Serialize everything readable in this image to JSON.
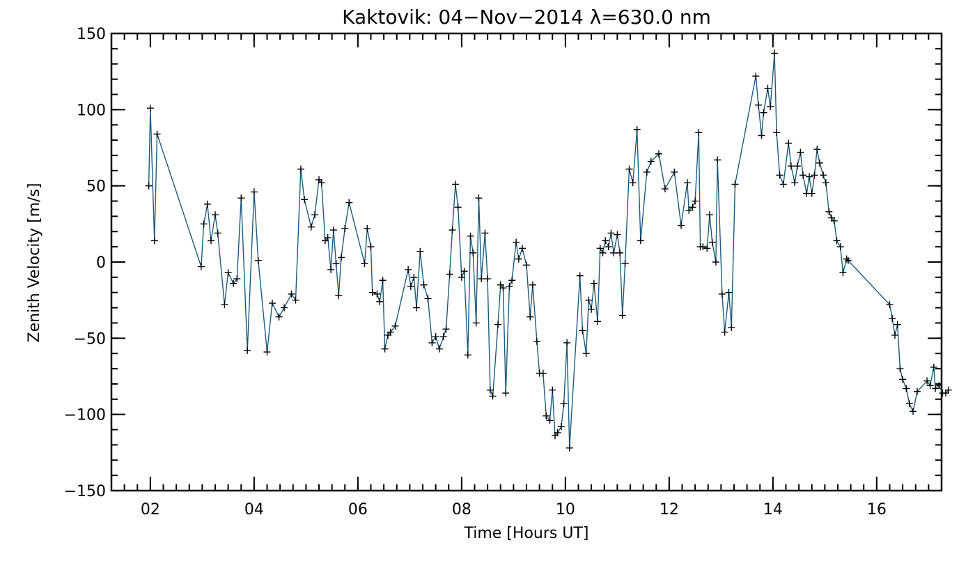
{
  "chart_data": {
    "type": "line",
    "title": "Kaktovik: 04−Nov−2014 λ=630.0 nm",
    "xlabel": "Time [Hours UT]",
    "ylabel": "Zenith Velocity [m/s]",
    "xlim": [
      1.25,
      17.25
    ],
    "ylim": [
      -150,
      150
    ],
    "x_ticks": [
      2,
      4,
      6,
      8,
      10,
      12,
      14,
      16
    ],
    "x_tick_labels": [
      "02",
      "04",
      "06",
      "08",
      "10",
      "12",
      "14",
      "16"
    ],
    "y_ticks": [
      -150,
      -100,
      -50,
      0,
      50,
      100,
      150
    ],
    "y_tick_labels": [
      "−150",
      "−100",
      "−50",
      "0",
      "50",
      "100",
      "150"
    ],
    "x_minor_step": 0.25,
    "y_minor_step": 10,
    "grid": false,
    "legend": "none",
    "line_color": "#1c5a7a",
    "marker": "+",
    "series": [
      {
        "points": [
          [
            1.97,
            50
          ],
          [
            2.0,
            101
          ],
          [
            2.08,
            14
          ],
          [
            2.13,
            84
          ],
          [
            2.98,
            -3
          ],
          [
            3.03,
            25
          ],
          [
            3.1,
            38
          ],
          [
            3.17,
            14
          ],
          [
            3.25,
            31
          ],
          [
            3.3,
            19
          ],
          [
            3.43,
            -28
          ],
          [
            3.5,
            -7
          ],
          [
            3.6,
            -14
          ],
          [
            3.67,
            -11
          ],
          [
            3.75,
            42
          ],
          [
            3.87,
            -58
          ],
          [
            4.0,
            46
          ],
          [
            4.08,
            1
          ],
          [
            4.25,
            -59
          ],
          [
            4.35,
            -27
          ],
          [
            4.48,
            -36
          ],
          [
            4.58,
            -30
          ],
          [
            4.72,
            -21
          ],
          [
            4.8,
            -25
          ],
          [
            4.9,
            61
          ],
          [
            4.97,
            41
          ],
          [
            5.1,
            23
          ],
          [
            5.17,
            31
          ],
          [
            5.25,
            54
          ],
          [
            5.3,
            52
          ],
          [
            5.37,
            14
          ],
          [
            5.42,
            16
          ],
          [
            5.48,
            -5
          ],
          [
            5.53,
            21
          ],
          [
            5.58,
            -1
          ],
          [
            5.63,
            -22
          ],
          [
            5.68,
            3
          ],
          [
            5.75,
            22
          ],
          [
            5.83,
            39
          ],
          [
            6.13,
            -1
          ],
          [
            6.18,
            22
          ],
          [
            6.25,
            10
          ],
          [
            6.28,
            -20
          ],
          [
            6.37,
            -21
          ],
          [
            6.42,
            -26
          ],
          [
            6.48,
            -12
          ],
          [
            6.52,
            -57
          ],
          [
            6.58,
            -48
          ],
          [
            6.63,
            -46
          ],
          [
            6.72,
            -42
          ],
          [
            6.97,
            -5
          ],
          [
            7.02,
            -16
          ],
          [
            7.08,
            -10
          ],
          [
            7.13,
            -30
          ],
          [
            7.2,
            7
          ],
          [
            7.27,
            -15
          ],
          [
            7.35,
            -24
          ],
          [
            7.43,
            -53
          ],
          [
            7.5,
            -49
          ],
          [
            7.57,
            -57
          ],
          [
            7.65,
            -49
          ],
          [
            7.7,
            -44
          ],
          [
            7.77,
            -8
          ],
          [
            7.82,
            21
          ],
          [
            7.88,
            51
          ],
          [
            7.93,
            36
          ],
          [
            8.0,
            -10
          ],
          [
            8.05,
            -6
          ],
          [
            8.12,
            -61
          ],
          [
            8.17,
            17
          ],
          [
            8.22,
            6
          ],
          [
            8.28,
            -40
          ],
          [
            8.33,
            42
          ],
          [
            8.38,
            -11
          ],
          [
            8.45,
            19
          ],
          [
            8.5,
            -11
          ],
          [
            8.55,
            -84
          ],
          [
            8.6,
            -88
          ],
          [
            8.7,
            -41
          ],
          [
            8.75,
            -15
          ],
          [
            8.8,
            -17
          ],
          [
            8.85,
            -86
          ],
          [
            8.92,
            -16
          ],
          [
            8.97,
            -12
          ],
          [
            9.05,
            13
          ],
          [
            9.1,
            2
          ],
          [
            9.17,
            9
          ],
          [
            9.25,
            -2
          ],
          [
            9.32,
            -36
          ],
          [
            9.37,
            -15
          ],
          [
            9.45,
            -52
          ],
          [
            9.5,
            -73
          ],
          [
            9.57,
            -73
          ],
          [
            9.63,
            -101
          ],
          [
            9.7,
            -104
          ],
          [
            9.75,
            -84
          ],
          [
            9.8,
            -114
          ],
          [
            9.85,
            -112
          ],
          [
            9.92,
            -108
          ],
          [
            9.97,
            -93
          ],
          [
            10.03,
            -53
          ],
          [
            10.08,
            -122
          ],
          [
            10.28,
            -9
          ],
          [
            10.33,
            -45
          ],
          [
            10.4,
            -60
          ],
          [
            10.45,
            -25
          ],
          [
            10.5,
            -31
          ],
          [
            10.55,
            -14
          ],
          [
            10.62,
            -39
          ],
          [
            10.67,
            9
          ],
          [
            10.72,
            6
          ],
          [
            10.77,
            14
          ],
          [
            10.83,
            10
          ],
          [
            10.88,
            19
          ],
          [
            10.93,
            6
          ],
          [
            11.0,
            18
          ],
          [
            11.05,
            6
          ],
          [
            11.1,
            -35
          ],
          [
            11.15,
            -1
          ],
          [
            11.23,
            61
          ],
          [
            11.3,
            52
          ],
          [
            11.38,
            87
          ],
          [
            11.45,
            14
          ],
          [
            11.57,
            59
          ],
          [
            11.65,
            66
          ],
          [
            11.8,
            71
          ],
          [
            11.92,
            48
          ],
          [
            12.1,
            59
          ],
          [
            12.23,
            24
          ],
          [
            12.35,
            52
          ],
          [
            12.38,
            34
          ],
          [
            12.45,
            36
          ],
          [
            12.5,
            40
          ],
          [
            12.57,
            85
          ],
          [
            12.6,
            10
          ],
          [
            12.65,
            10
          ],
          [
            12.73,
            9
          ],
          [
            12.78,
            31
          ],
          [
            12.83,
            13
          ],
          [
            12.9,
            0
          ],
          [
            12.93,
            67
          ],
          [
            13.02,
            -21
          ],
          [
            13.07,
            -46
          ],
          [
            13.15,
            -20
          ],
          [
            13.2,
            -43
          ],
          [
            13.27,
            51
          ],
          [
            13.67,
            122
          ],
          [
            13.72,
            103
          ],
          [
            13.78,
            83
          ],
          [
            13.82,
            98
          ],
          [
            13.9,
            114
          ],
          [
            13.95,
            102
          ],
          [
            14.03,
            137
          ],
          [
            14.07,
            85
          ],
          [
            14.13,
            57
          ],
          [
            14.2,
            51
          ],
          [
            14.3,
            78
          ],
          [
            14.35,
            63
          ],
          [
            14.42,
            52
          ],
          [
            14.47,
            63
          ],
          [
            14.53,
            72
          ],
          [
            14.58,
            57
          ],
          [
            14.65,
            45
          ],
          [
            14.7,
            56
          ],
          [
            14.75,
            45
          ],
          [
            14.8,
            57
          ],
          [
            14.85,
            74
          ],
          [
            14.9,
            65
          ],
          [
            14.97,
            57
          ],
          [
            15.02,
            52
          ],
          [
            15.08,
            33
          ],
          [
            15.13,
            29
          ],
          [
            15.18,
            27
          ],
          [
            15.23,
            14
          ],
          [
            15.3,
            10
          ],
          [
            15.35,
            -7
          ],
          [
            15.42,
            2
          ],
          [
            15.45,
            1
          ],
          [
            16.25,
            -28
          ],
          [
            16.3,
            -37
          ],
          [
            16.35,
            -48
          ],
          [
            16.4,
            -41
          ],
          [
            16.45,
            -70
          ],
          [
            16.5,
            -77
          ],
          [
            16.57,
            -83
          ],
          [
            16.63,
            -93
          ],
          [
            16.7,
            -98
          ],
          [
            16.78,
            -85
          ],
          [
            16.97,
            -78
          ],
          [
            17.03,
            -81
          ],
          [
            17.1,
            -69
          ],
          [
            17.13,
            -83
          ],
          [
            17.2,
            -81
          ],
          [
            17.27,
            -86
          ],
          [
            17.33,
            -86
          ],
          [
            17.38,
            -84
          ]
        ]
      }
    ]
  }
}
